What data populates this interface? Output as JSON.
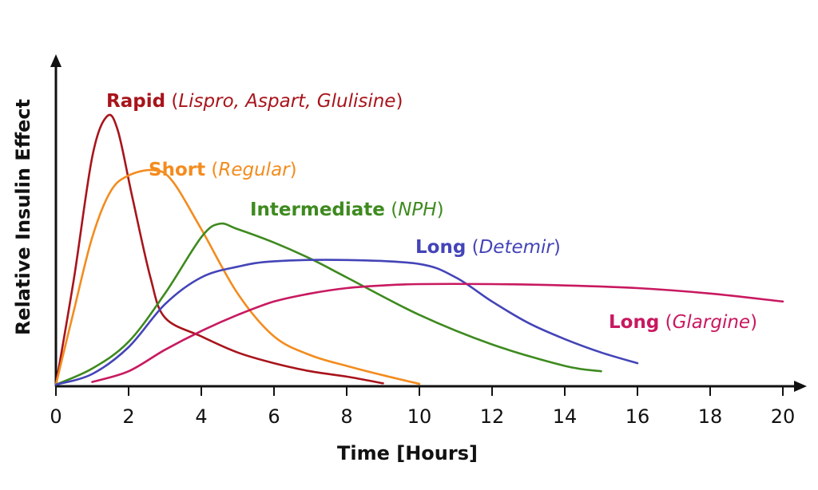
{
  "chart_data": {
    "type": "line",
    "title": "",
    "xlabel": "Time [Hours]",
    "ylabel": "Relative Insulin Effect",
    "xlim": [
      0,
      20
    ],
    "ylim": [
      0,
      1
    ],
    "xticks": [
      0,
      2,
      4,
      6,
      8,
      10,
      12,
      14,
      16,
      18,
      20
    ],
    "grid": false,
    "legend": "inline labels",
    "series": [
      {
        "name": "Rapid",
        "drugs": "Lispro, Aspart, Glulisine",
        "color": "#a8141b",
        "x": [
          0,
          0.5,
          1.0,
          1.4,
          1.7,
          2.1,
          2.6,
          3.0,
          4.0,
          5.0,
          6.0,
          7.0,
          8.0,
          9.0
        ],
        "y": [
          0,
          0.4,
          0.85,
          1.0,
          0.95,
          0.7,
          0.4,
          0.25,
          0.18,
          0.12,
          0.08,
          0.05,
          0.03,
          0.005
        ]
      },
      {
        "name": "Short",
        "drugs": "Regular",
        "color": "#f38c1e",
        "x": [
          0,
          0.5,
          1.0,
          1.5,
          2.0,
          2.7,
          3.2,
          4.0,
          5.0,
          6.0,
          7.0,
          8.0,
          9.0,
          10.0
        ],
        "y": [
          0,
          0.28,
          0.55,
          0.72,
          0.78,
          0.8,
          0.76,
          0.58,
          0.34,
          0.18,
          0.11,
          0.07,
          0.035,
          0.003
        ]
      },
      {
        "name": "Intermediate",
        "drugs": "NPH",
        "color": "#3e8a1f",
        "x": [
          0,
          1.0,
          2.0,
          3.0,
          4.0,
          4.5,
          5.0,
          6.0,
          7.0,
          8.0,
          10.0,
          12.0,
          14.0,
          15.0
        ],
        "y": [
          0,
          0.06,
          0.16,
          0.34,
          0.55,
          0.6,
          0.58,
          0.53,
          0.47,
          0.4,
          0.26,
          0.15,
          0.07,
          0.05
        ]
      },
      {
        "name": "Long",
        "drugs": "Detemir",
        "color": "#4444b8",
        "x": [
          0,
          1.0,
          2.0,
          3.0,
          4.0,
          5.0,
          6.0,
          8.0,
          10.0,
          11.0,
          12.0,
          13.0,
          14.0,
          15.0,
          16.0
        ],
        "y": [
          0,
          0.04,
          0.14,
          0.3,
          0.4,
          0.44,
          0.46,
          0.465,
          0.45,
          0.4,
          0.31,
          0.23,
          0.17,
          0.12,
          0.08
        ]
      },
      {
        "name": "Long",
        "drugs": "Glargine",
        "color": "#c81960",
        "x": [
          1.0,
          2.0,
          3.0,
          4.0,
          5.0,
          6.0,
          7.0,
          8.0,
          9.0,
          10.0,
          12.0,
          14.0,
          16.0,
          18.0,
          20.0
        ],
        "y": [
          0.01,
          0.05,
          0.13,
          0.2,
          0.26,
          0.31,
          0.34,
          0.36,
          0.37,
          0.375,
          0.375,
          0.37,
          0.36,
          0.34,
          0.31
        ]
      }
    ]
  }
}
